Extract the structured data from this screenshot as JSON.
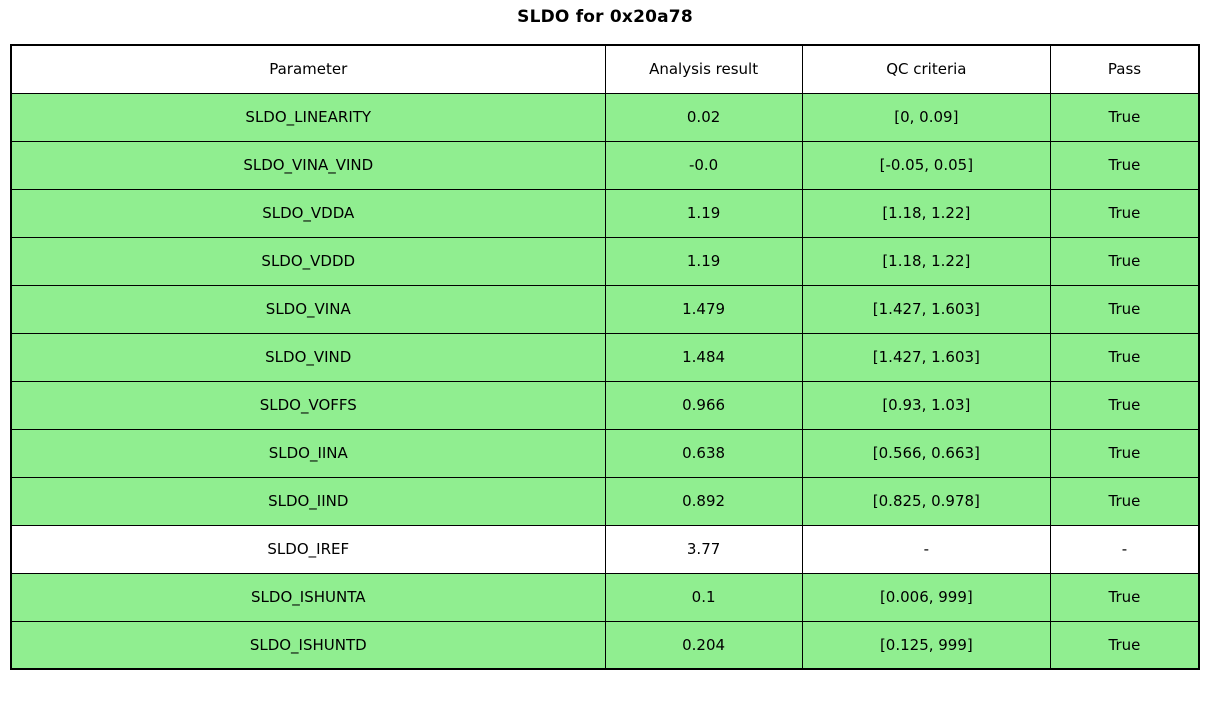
{
  "title": "SLDO for 0x20a78",
  "colors": {
    "pass_row": "#90ee90",
    "neutral_row": "#ffffff",
    "border": "#000000"
  },
  "table": {
    "headers": {
      "parameter": "Parameter",
      "result": "Analysis result",
      "criteria": "QC criteria",
      "pass": "Pass"
    },
    "rows": [
      {
        "parameter": "SLDO_LINEARITY",
        "result": "0.02",
        "criteria": "[0, 0.09]",
        "pass": "True",
        "highlight": true
      },
      {
        "parameter": "SLDO_VINA_VIND",
        "result": "-0.0",
        "criteria": "[-0.05, 0.05]",
        "pass": "True",
        "highlight": true
      },
      {
        "parameter": "SLDO_VDDA",
        "result": "1.19",
        "criteria": "[1.18, 1.22]",
        "pass": "True",
        "highlight": true
      },
      {
        "parameter": "SLDO_VDDD",
        "result": "1.19",
        "criteria": "[1.18, 1.22]",
        "pass": "True",
        "highlight": true
      },
      {
        "parameter": "SLDO_VINA",
        "result": "1.479",
        "criteria": "[1.427, 1.603]",
        "pass": "True",
        "highlight": true
      },
      {
        "parameter": "SLDO_VIND",
        "result": "1.484",
        "criteria": "[1.427, 1.603]",
        "pass": "True",
        "highlight": true
      },
      {
        "parameter": "SLDO_VOFFS",
        "result": "0.966",
        "criteria": "[0.93, 1.03]",
        "pass": "True",
        "highlight": true
      },
      {
        "parameter": "SLDO_IINA",
        "result": "0.638",
        "criteria": "[0.566, 0.663]",
        "pass": "True",
        "highlight": true
      },
      {
        "parameter": "SLDO_IIND",
        "result": "0.892",
        "criteria": "[0.825, 0.978]",
        "pass": "True",
        "highlight": true
      },
      {
        "parameter": "SLDO_IREF",
        "result": "3.77",
        "criteria": "-",
        "pass": "-",
        "highlight": false
      },
      {
        "parameter": "SLDO_ISHUNTA",
        "result": "0.1",
        "criteria": "[0.006, 999]",
        "pass": "True",
        "highlight": true
      },
      {
        "parameter": "SLDO_ISHUNTD",
        "result": "0.204",
        "criteria": "[0.125, 999]",
        "pass": "True",
        "highlight": true
      }
    ]
  }
}
